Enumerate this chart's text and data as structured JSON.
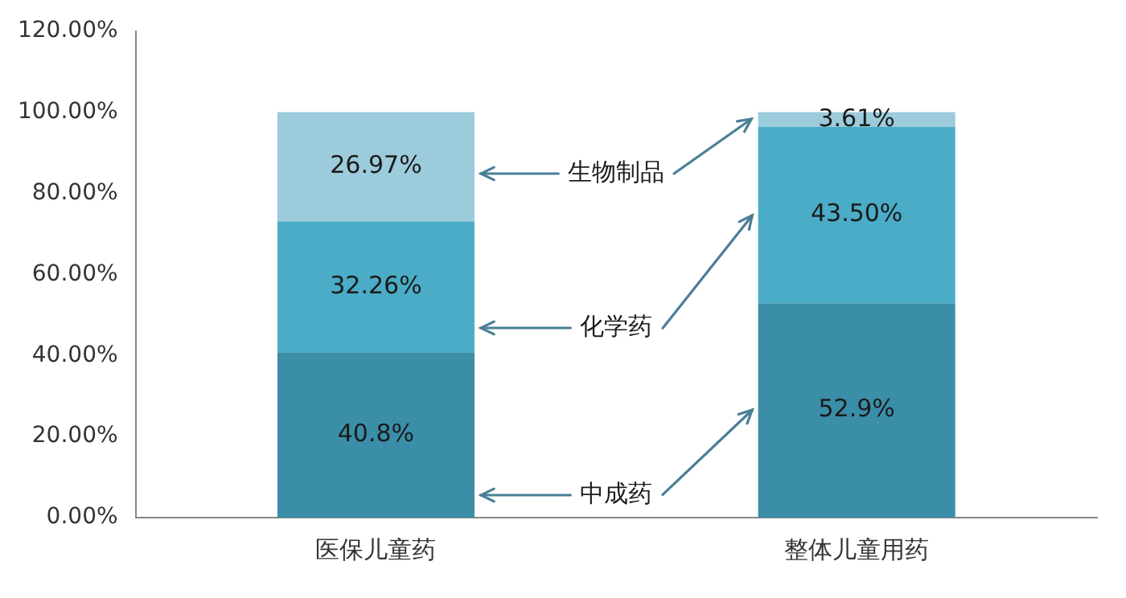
{
  "chart_data": {
    "type": "bar",
    "stacked": true,
    "categories": [
      "医保儿童药",
      "整体儿童用药"
    ],
    "series": [
      {
        "name": "中成药",
        "color": "#3b8ea8",
        "values": [
          40.8,
          52.9
        ],
        "value_labels": [
          "40.8%",
          "52.9%"
        ]
      },
      {
        "name": "化学药",
        "color": "#4aacc6",
        "values": [
          32.26,
          43.5
        ],
        "value_labels": [
          "32.26%",
          "43.50%"
        ]
      },
      {
        "name": "生物制品",
        "color": "#9ccbdc",
        "values": [
          26.97,
          3.61
        ],
        "value_labels": [
          "26.97%",
          "3.61%"
        ]
      }
    ],
    "ylim": [
      0,
      120
    ],
    "yticks": [
      {
        "value": 0,
        "label": "0.00%"
      },
      {
        "value": 20,
        "label": "20.00%"
      },
      {
        "value": 40,
        "label": "40.00%"
      },
      {
        "value": 60,
        "label": "60.00%"
      },
      {
        "value": 80,
        "label": "80.00%"
      },
      {
        "value": 100,
        "label": "100.00%"
      },
      {
        "value": 120,
        "label": "120.00%"
      }
    ],
    "grid": false,
    "legend": false
  }
}
